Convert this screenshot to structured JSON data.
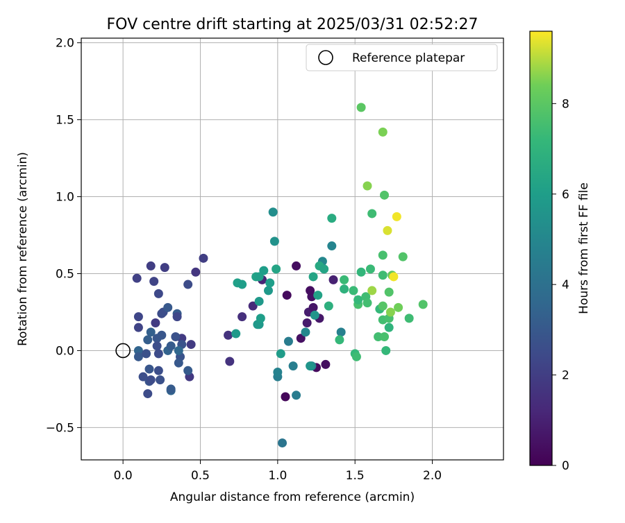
{
  "chart_data": {
    "type": "scatter",
    "title": "FOV centre drift starting at 2025/03/31 02:52:27",
    "xlabel": "Angular distance from reference (arcmin)",
    "ylabel": "Rotation from reference (arcmin)",
    "xlim": [
      -0.27,
      2.46
    ],
    "ylim": [
      -0.71,
      2.03
    ],
    "xticks": [
      0.0,
      0.5,
      1.0,
      1.5,
      2.0
    ],
    "xtick_labels": [
      "0.0",
      "0.5",
      "1.0",
      "1.5",
      "2.0"
    ],
    "yticks": [
      -0.5,
      0.0,
      0.5,
      1.0,
      1.5,
      2.0
    ],
    "ytick_labels": [
      "−0.5",
      "0.0",
      "0.5",
      "1.0",
      "1.5",
      "2.0"
    ],
    "grid": true,
    "legend": {
      "placement": "top-right",
      "label": "Reference platepar"
    },
    "reference_point": {
      "x": 0.0,
      "y": 0.0
    },
    "colorbar": {
      "label": "Hours from first FF file",
      "min": 0,
      "max": 9.6,
      "ticks": [
        0,
        2,
        4,
        6,
        8
      ],
      "tick_labels": [
        "0",
        "2",
        "4",
        "6",
        "8"
      ],
      "colormap": "viridis"
    },
    "points": [
      {
        "x": 1.05,
        "y": -0.3,
        "c": 0.2
      },
      {
        "x": 1.25,
        "y": -0.11,
        "c": 0.3
      },
      {
        "x": 1.31,
        "y": -0.09,
        "c": 0.4
      },
      {
        "x": 1.15,
        "y": 0.08,
        "c": 0.5
      },
      {
        "x": 1.27,
        "y": 0.21,
        "c": 0.7
      },
      {
        "x": 1.19,
        "y": 0.18,
        "c": 0.8
      },
      {
        "x": 1.2,
        "y": 0.25,
        "c": 0.9
      },
      {
        "x": 1.23,
        "y": 0.28,
        "c": 0.6
      },
      {
        "x": 1.22,
        "y": 0.35,
        "c": 0.5
      },
      {
        "x": 1.21,
        "y": 0.39,
        "c": 0.4
      },
      {
        "x": 1.06,
        "y": 0.36,
        "c": 0.3
      },
      {
        "x": 1.12,
        "y": 0.55,
        "c": 0.4
      },
      {
        "x": 1.36,
        "y": 0.46,
        "c": 1.0
      },
      {
        "x": 0.9,
        "y": 0.46,
        "c": 1.1
      },
      {
        "x": 0.84,
        "y": 0.29,
        "c": 1.3
      },
      {
        "x": 0.77,
        "y": 0.22,
        "c": 1.5
      },
      {
        "x": 0.68,
        "y": 0.1,
        "c": 1.6
      },
      {
        "x": 0.69,
        "y": -0.07,
        "c": 1.6
      },
      {
        "x": 0.47,
        "y": 0.51,
        "c": 1.7
      },
      {
        "x": 0.43,
        "y": -0.17,
        "c": 1.8
      },
      {
        "x": 0.44,
        "y": 0.04,
        "c": 1.9
      },
      {
        "x": 0.38,
        "y": 0.08,
        "c": 1.9
      },
      {
        "x": 0.52,
        "y": 0.6,
        "c": 2.0
      },
      {
        "x": 0.18,
        "y": 0.55,
        "c": 2.0
      },
      {
        "x": 0.27,
        "y": 0.54,
        "c": 2.0
      },
      {
        "x": 0.09,
        "y": 0.47,
        "c": 2.1
      },
      {
        "x": 0.2,
        "y": 0.45,
        "c": 2.2
      },
      {
        "x": 0.42,
        "y": 0.43,
        "c": 2.5
      },
      {
        "x": 0.23,
        "y": 0.37,
        "c": 2.4
      },
      {
        "x": 0.25,
        "y": 0.24,
        "c": 2.5
      },
      {
        "x": 0.1,
        "y": 0.22,
        "c": 2.3
      },
      {
        "x": 0.1,
        "y": 0.15,
        "c": 2.2
      },
      {
        "x": 0.21,
        "y": 0.18,
        "c": 1.9
      },
      {
        "x": 0.26,
        "y": 0.25,
        "c": 2.6
      },
      {
        "x": 0.29,
        "y": 0.28,
        "c": 3.0
      },
      {
        "x": 0.35,
        "y": 0.24,
        "c": 3.1
      },
      {
        "x": 0.35,
        "y": 0.22,
        "c": 2.3
      },
      {
        "x": 0.18,
        "y": 0.12,
        "c": 3.3
      },
      {
        "x": 0.16,
        "y": 0.07,
        "c": 3.2
      },
      {
        "x": 0.22,
        "y": 0.08,
        "c": 2.9
      },
      {
        "x": 0.25,
        "y": 0.1,
        "c": 2.9
      },
      {
        "x": 0.34,
        "y": 0.09,
        "c": 2.7
      },
      {
        "x": 0.38,
        "y": 0.04,
        "c": 2.8
      },
      {
        "x": 0.22,
        "y": 0.03,
        "c": 2.6
      },
      {
        "x": 0.29,
        "y": 0.0,
        "c": 3.4
      },
      {
        "x": 0.31,
        "y": 0.03,
        "c": 3.1
      },
      {
        "x": 0.37,
        "y": -0.04,
        "c": 2.8
      },
      {
        "x": 0.1,
        "y": 0.0,
        "c": 3.5
      },
      {
        "x": 0.1,
        "y": -0.04,
        "c": 3.0
      },
      {
        "x": 0.15,
        "y": -0.02,
        "c": 2.7
      },
      {
        "x": 0.23,
        "y": -0.02,
        "c": 2.5
      },
      {
        "x": 0.36,
        "y": 0.0,
        "c": 3.6
      },
      {
        "x": 0.36,
        "y": -0.08,
        "c": 3.0
      },
      {
        "x": 0.42,
        "y": -0.13,
        "c": 3.1
      },
      {
        "x": 0.13,
        "y": -0.17,
        "c": 2.6
      },
      {
        "x": 0.17,
        "y": -0.12,
        "c": 2.9
      },
      {
        "x": 0.17,
        "y": -0.2,
        "c": 2.8
      },
      {
        "x": 0.18,
        "y": -0.19,
        "c": 2.5
      },
      {
        "x": 0.23,
        "y": -0.13,
        "c": 2.6
      },
      {
        "x": 0.24,
        "y": -0.19,
        "c": 2.7
      },
      {
        "x": 0.16,
        "y": -0.28,
        "c": 2.5
      },
      {
        "x": 0.31,
        "y": -0.26,
        "c": 3.5
      },
      {
        "x": 0.31,
        "y": -0.25,
        "c": 3.1
      },
      {
        "x": 1.03,
        "y": -0.6,
        "c": 4.2
      },
      {
        "x": 1.12,
        "y": -0.29,
        "c": 4.5
      },
      {
        "x": 1.0,
        "y": -0.17,
        "c": 4.6
      },
      {
        "x": 1.0,
        "y": -0.14,
        "c": 4.8
      },
      {
        "x": 1.1,
        "y": -0.1,
        "c": 4.6
      },
      {
        "x": 1.22,
        "y": -0.1,
        "c": 4.9
      },
      {
        "x": 1.07,
        "y": 0.06,
        "c": 4.5
      },
      {
        "x": 1.18,
        "y": 0.12,
        "c": 5.0
      },
      {
        "x": 1.41,
        "y": 0.12,
        "c": 4.7
      },
      {
        "x": 1.35,
        "y": 0.68,
        "c": 4.9
      },
      {
        "x": 1.29,
        "y": 0.58,
        "c": 5.0
      },
      {
        "x": 0.97,
        "y": 0.9,
        "c": 5.3
      },
      {
        "x": 0.98,
        "y": 0.71,
        "c": 5.5
      },
      {
        "x": 1.02,
        "y": -0.02,
        "c": 5.9
      },
      {
        "x": 1.21,
        "y": -0.1,
        "c": 5.6
      },
      {
        "x": 1.24,
        "y": 0.23,
        "c": 5.6
      },
      {
        "x": 0.73,
        "y": 0.11,
        "c": 5.8
      },
      {
        "x": 0.87,
        "y": 0.17,
        "c": 5.7
      },
      {
        "x": 0.88,
        "y": 0.17,
        "c": 5.8
      },
      {
        "x": 0.89,
        "y": 0.21,
        "c": 6.0
      },
      {
        "x": 0.88,
        "y": 0.32,
        "c": 5.8
      },
      {
        "x": 0.94,
        "y": 0.39,
        "c": 5.8
      },
      {
        "x": 0.95,
        "y": 0.44,
        "c": 6.0
      },
      {
        "x": 0.74,
        "y": 0.44,
        "c": 6.1
      },
      {
        "x": 0.77,
        "y": 0.43,
        "c": 6.0
      },
      {
        "x": 0.86,
        "y": 0.48,
        "c": 6.2
      },
      {
        "x": 0.88,
        "y": 0.48,
        "c": 6.1
      },
      {
        "x": 0.91,
        "y": 0.52,
        "c": 6.0
      },
      {
        "x": 0.99,
        "y": 0.53,
        "c": 6.3
      },
      {
        "x": 1.23,
        "y": 0.48,
        "c": 6.3
      },
      {
        "x": 1.26,
        "y": 0.36,
        "c": 6.2
      },
      {
        "x": 1.27,
        "y": 0.55,
        "c": 6.5
      },
      {
        "x": 1.3,
        "y": 0.53,
        "c": 6.3
      },
      {
        "x": 1.33,
        "y": 0.29,
        "c": 6.8
      },
      {
        "x": 1.35,
        "y": 0.86,
        "c": 6.6
      },
      {
        "x": 1.4,
        "y": 0.07,
        "c": 7.2
      },
      {
        "x": 1.43,
        "y": 0.4,
        "c": 6.9
      },
      {
        "x": 1.43,
        "y": 0.46,
        "c": 7.3
      },
      {
        "x": 1.5,
        "y": -0.02,
        "c": 7.2
      },
      {
        "x": 1.51,
        "y": -0.04,
        "c": 7.4
      },
      {
        "x": 1.49,
        "y": 0.39,
        "c": 7.3
      },
      {
        "x": 1.52,
        "y": 0.3,
        "c": 7.6
      },
      {
        "x": 1.52,
        "y": 0.33,
        "c": 7.2
      },
      {
        "x": 1.54,
        "y": 0.51,
        "c": 7.1
      },
      {
        "x": 1.57,
        "y": 0.35,
        "c": 7.4
      },
      {
        "x": 1.58,
        "y": 0.31,
        "c": 7.5
      },
      {
        "x": 1.6,
        "y": 0.53,
        "c": 7.3
      },
      {
        "x": 1.61,
        "y": 0.89,
        "c": 7.4
      },
      {
        "x": 1.65,
        "y": 0.09,
        "c": 7.5
      },
      {
        "x": 1.66,
        "y": 0.27,
        "c": 7.2
      },
      {
        "x": 1.68,
        "y": 0.29,
        "c": 7.9
      },
      {
        "x": 1.68,
        "y": 0.2,
        "c": 7.5
      },
      {
        "x": 1.68,
        "y": 0.49,
        "c": 7.4
      },
      {
        "x": 1.68,
        "y": 0.62,
        "c": 7.6
      },
      {
        "x": 1.69,
        "y": 1.01,
        "c": 7.8
      },
      {
        "x": 1.69,
        "y": 0.09,
        "c": 7.6
      },
      {
        "x": 1.7,
        "y": 0.0,
        "c": 7.2
      },
      {
        "x": 1.72,
        "y": 0.21,
        "c": 7.6
      },
      {
        "x": 1.72,
        "y": 0.15,
        "c": 7.0
      },
      {
        "x": 1.72,
        "y": 0.38,
        "c": 7.8
      },
      {
        "x": 1.73,
        "y": 0.25,
        "c": 8.6
      },
      {
        "x": 1.74,
        "y": 0.49,
        "c": 8.1
      },
      {
        "x": 1.78,
        "y": 0.28,
        "c": 8.4
      },
      {
        "x": 1.81,
        "y": 0.61,
        "c": 7.8
      },
      {
        "x": 1.85,
        "y": 0.21,
        "c": 7.4
      },
      {
        "x": 1.94,
        "y": 0.3,
        "c": 7.8
      },
      {
        "x": 1.54,
        "y": 1.58,
        "c": 8.0
      },
      {
        "x": 1.58,
        "y": 1.07,
        "c": 8.6
      },
      {
        "x": 1.61,
        "y": 0.39,
        "c": 8.8
      },
      {
        "x": 1.68,
        "y": 1.42,
        "c": 8.5
      },
      {
        "x": 1.71,
        "y": 0.78,
        "c": 9.3
      },
      {
        "x": 1.75,
        "y": 0.48,
        "c": 9.5
      },
      {
        "x": 1.77,
        "y": 0.87,
        "c": 9.5
      }
    ]
  }
}
